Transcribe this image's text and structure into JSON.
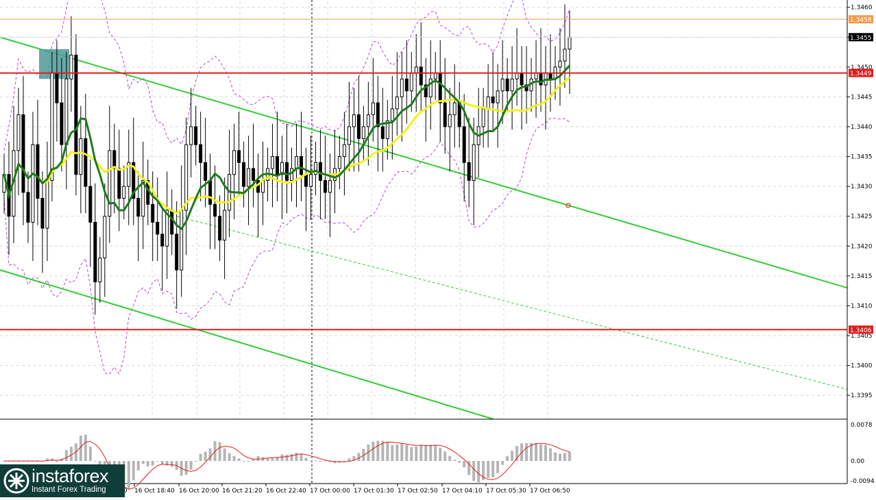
{
  "chart_data": {
    "type": "candlestick",
    "price_scale": {
      "ylim": [
        1.3391,
        1.3461
      ],
      "ticks": [
        "1.3460",
        "1.3455",
        "1.3450",
        "1.3445",
        "1.3440",
        "1.3435",
        "1.3430",
        "1.3425",
        "1.3420",
        "1.3415",
        "1.3410",
        "1.3405",
        "1.3400",
        "1.3395"
      ]
    },
    "time_labels": [
      "16 Oct 18:40",
      "16 Oct 20:00",
      "16 Oct 21:20",
      "16 Oct 22:40",
      "17 Oct 00:00",
      "17 Oct 01:30",
      "17 Oct 02:50",
      "17 Oct 04:10",
      "17 Oct 05:30",
      "17 Oct 06:50"
    ],
    "partial_first_time_label": "0",
    "levels": [
      {
        "value": 1.3458,
        "label": "1.3458",
        "color": "#f39c4a",
        "kind": "thin"
      },
      {
        "value": 1.3455,
        "label": "1.3455",
        "color": "#c8c8c8",
        "kind": "current"
      },
      {
        "value": 1.3449,
        "label": "1.3449",
        "color": "#e31b1b",
        "kind": "resistance"
      },
      {
        "value": 1.3406,
        "label": "1.3406",
        "color": "#e31b1b",
        "kind": "support"
      }
    ],
    "channel": {
      "color": "#33cc33",
      "upper": [
        [
          0,
          1.3455
        ],
        [
          1236,
          1.3413
        ]
      ],
      "lower": [
        [
          0,
          1.3416
        ],
        [
          720,
          1.3391
        ]
      ],
      "mid": [
        [
          258,
          1.3425
        ],
        [
          1236,
          1.3396
        ]
      ]
    },
    "ma_fast_color": "#1d7a1d",
    "ma_slow_color": "#f2f21e",
    "bands_color": "#b04ad8",
    "marker_box_color": "#4d9a96",
    "macd_scale": {
      "ticks": [
        "0.0078",
        "0.00",
        "-0.0094"
      ],
      "hist_color": "#b5b5b5",
      "signal_color": "#e31b1b"
    },
    "closes": [
      1.3432,
      1.3425,
      1.3436,
      1.3442,
      1.3429,
      1.3424,
      1.3437,
      1.3428,
      1.3423,
      1.3431,
      1.3449,
      1.3444,
      1.3437,
      1.3448,
      1.3452,
      1.3432,
      1.3438,
      1.343,
      1.3424,
      1.3414,
      1.3418,
      1.3425,
      1.3436,
      1.3433,
      1.3428,
      1.343,
      1.3434,
      1.3428,
      1.3425,
      1.3431,
      1.3427,
      1.3424,
      1.3422,
      1.342,
      1.3426,
      1.3422,
      1.3416,
      1.3426,
      1.3437,
      1.344,
      1.3437,
      1.3434,
      1.3431,
      1.3427,
      1.3425,
      1.3421,
      1.3426,
      1.3432,
      1.3436,
      1.3434,
      1.343,
      1.3433,
      1.3431,
      1.3429,
      1.3431,
      1.3433,
      1.3435,
      1.3432,
      1.3434,
      1.3431,
      1.3433,
      1.3435,
      1.3432,
      1.343,
      1.3432,
      1.3434,
      1.3431,
      1.3429,
      1.3431,
      1.3433,
      1.3435,
      1.3437,
      1.344,
      1.3442,
      1.3438,
      1.344,
      1.3442,
      1.3444,
      1.344,
      1.3438,
      1.3441,
      1.3443,
      1.3445,
      1.3448,
      1.3446,
      1.3449,
      1.345,
      1.3447,
      1.3445,
      1.3448,
      1.3449,
      1.3444,
      1.344,
      1.3442,
      1.3444,
      1.344,
      1.3434,
      1.3431,
      1.3437,
      1.344,
      1.3443,
      1.3445,
      1.3444,
      1.3446,
      1.3448,
      1.3446,
      1.3448,
      1.3449,
      1.3447,
      1.3446,
      1.3448,
      1.3449,
      1.3447,
      1.3449,
      1.3448,
      1.345,
      1.3451,
      1.3453,
      1.3455
    ]
  },
  "brand": {
    "name": "instaforex",
    "tagline": "Instant Forex Trading"
  }
}
